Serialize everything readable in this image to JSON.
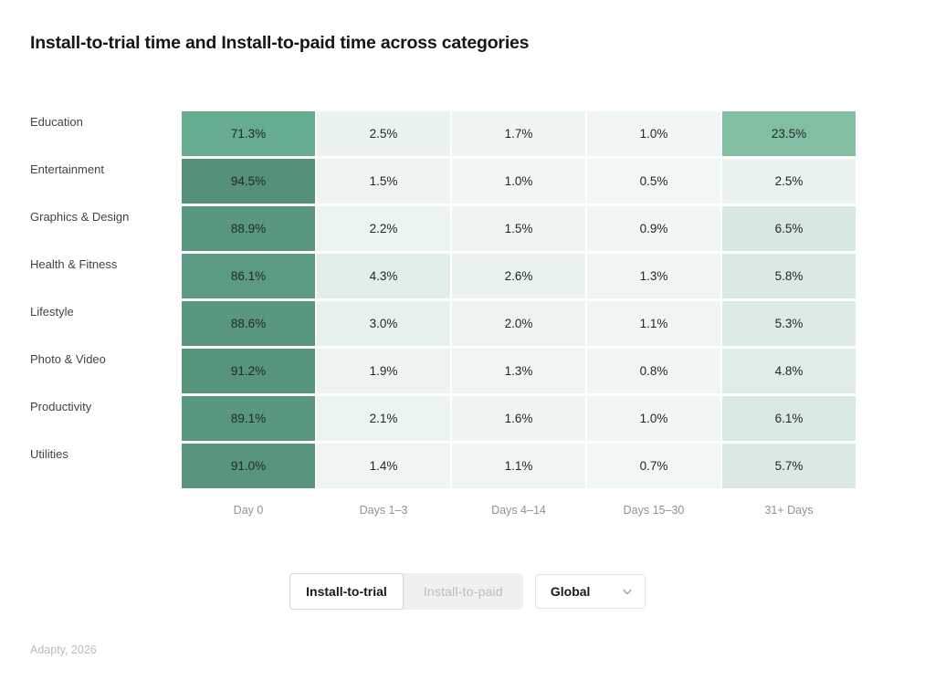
{
  "page": {
    "title": "Install-to-trial time and Install-to-paid time across categories",
    "source": "Adapty, 2026"
  },
  "controls": {
    "tabs": [
      {
        "label": "Install-to-trial",
        "active": true
      },
      {
        "label": "Install-to-paid",
        "active": false
      }
    ],
    "region": {
      "value": "Global",
      "icon": "chevron-down-icon"
    }
  },
  "chart_data": {
    "type": "heatmap",
    "title": "Install-to-trial time and Install-to-paid time across categories",
    "rows": [
      "Education",
      "Entertainment",
      "Graphics & Design",
      "Health & Fitness",
      "Lifestyle",
      "Photo & Video",
      "Productivity",
      "Utilities"
    ],
    "columns": [
      "Day 0",
      "Days 1–3",
      "Days 4–14",
      "Days 15–30",
      "31+ Days"
    ],
    "values": [
      [
        71.3,
        2.5,
        1.7,
        1.0,
        23.5
      ],
      [
        94.5,
        1.5,
        1.0,
        0.5,
        2.5
      ],
      [
        88.9,
        2.2,
        1.5,
        0.9,
        6.5
      ],
      [
        86.1,
        4.3,
        2.6,
        1.3,
        5.8
      ],
      [
        88.6,
        3.0,
        2.0,
        1.1,
        5.3
      ],
      [
        91.2,
        1.9,
        1.3,
        0.8,
        4.8
      ],
      [
        89.1,
        2.1,
        1.6,
        1.0,
        6.1
      ],
      [
        91.0,
        1.4,
        1.1,
        0.7,
        5.7
      ]
    ],
    "value_suffix": "%",
    "value_range": [
      0,
      100
    ],
    "legend": "none",
    "grid_gap_color": "#ffffff",
    "cell_text_color": "#22272b",
    "color_scale": {
      "stops": [
        [
          0.0,
          "#f3f8f5"
        ],
        [
          2.5,
          "#ebf3ef"
        ],
        [
          6.5,
          "#d6e8e0"
        ],
        [
          23.5,
          "#82bfa2"
        ],
        [
          71.3,
          "#66ad90"
        ],
        [
          94.5,
          "#559178"
        ]
      ]
    }
  }
}
